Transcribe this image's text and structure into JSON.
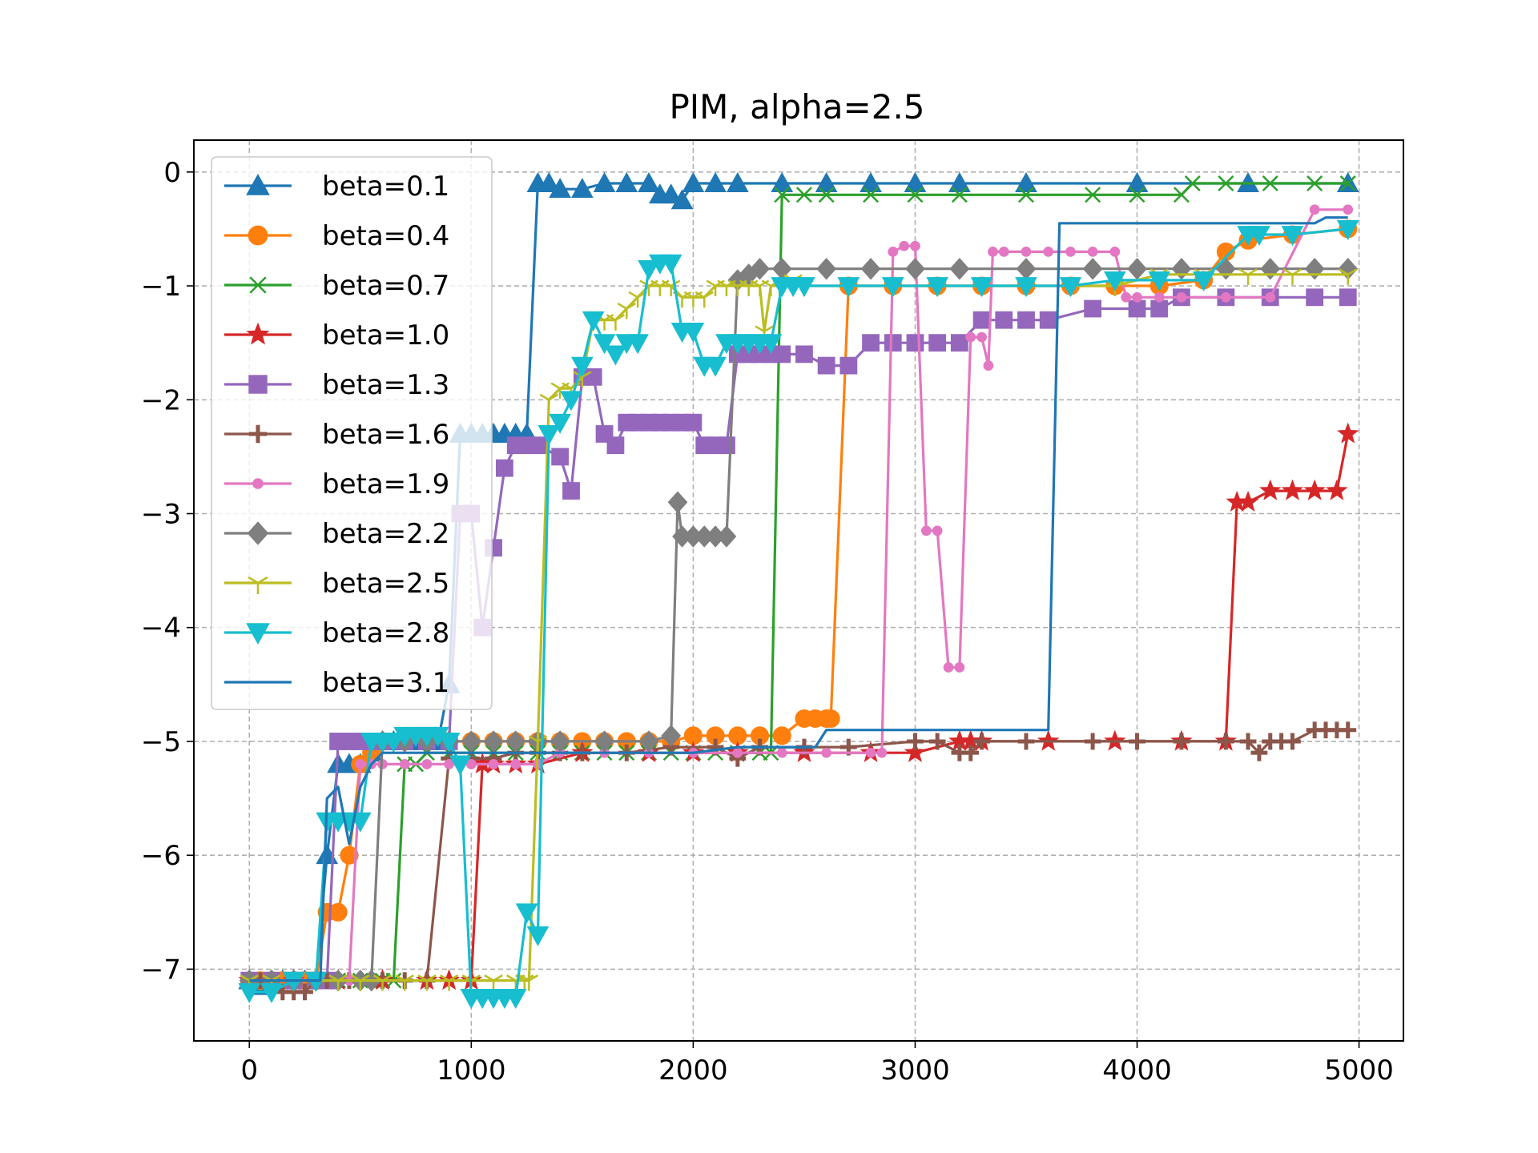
{
  "chart_data": {
    "type": "line",
    "title": "PIM, alpha=2.5",
    "xlabel": "",
    "ylabel": "",
    "xlim": [
      -250,
      5200
    ],
    "ylim": [
      -7.63,
      0.28
    ],
    "xticks": [
      0,
      1000,
      2000,
      3000,
      4000,
      5000
    ],
    "yticks": [
      0,
      -1,
      -2,
      -3,
      -4,
      -5,
      -6,
      -7
    ],
    "xtick_labels": [
      "0",
      "1000",
      "2000",
      "3000",
      "4000",
      "5000"
    ],
    "ytick_labels": [
      "0",
      "−1",
      "−2",
      "−3",
      "−4",
      "−5",
      "−6",
      "−7"
    ],
    "grid": true,
    "legend_position": "upper-left",
    "series": [
      {
        "name": "beta=0.1",
        "color": "#1f77b4",
        "marker": "triangle-up",
        "x": [
          0,
          50,
          100,
          150,
          200,
          250,
          300,
          350,
          400,
          450,
          500,
          550,
          600,
          650,
          700,
          750,
          800,
          850,
          900,
          950,
          1000,
          1050,
          1100,
          1150,
          1200,
          1250,
          1300,
          1350,
          1400,
          1500,
          1600,
          1700,
          1800,
          1850,
          1900,
          1950,
          2000,
          2100,
          2200,
          2400,
          2600,
          2800,
          3000,
          3200,
          3500,
          4000,
          4500,
          4950
        ],
        "y": [
          -7.1,
          -7.15,
          -7.1,
          -7.1,
          -7.1,
          -7.1,
          -7.1,
          -6.0,
          -5.2,
          -5.2,
          -5.2,
          -5.1,
          -5.0,
          -5.0,
          -5.0,
          -5.0,
          -5.0,
          -5.0,
          -4.5,
          -2.3,
          -2.3,
          -2.3,
          -2.3,
          -2.3,
          -2.3,
          -2.3,
          -0.1,
          -0.1,
          -0.15,
          -0.15,
          -0.1,
          -0.1,
          -0.1,
          -0.2,
          -0.2,
          -0.25,
          -0.1,
          -0.1,
          -0.1,
          -0.1,
          -0.1,
          -0.1,
          -0.1,
          -0.1,
          -0.1,
          -0.1,
          -0.1,
          -0.1
        ]
      },
      {
        "name": "beta=0.4",
        "color": "#ff7f0e",
        "marker": "circle",
        "x": [
          0,
          50,
          100,
          150,
          200,
          250,
          300,
          350,
          400,
          450,
          500,
          550,
          600,
          700,
          800,
          900,
          1000,
          1100,
          1200,
          1300,
          1400,
          1500,
          1600,
          1700,
          1800,
          1900,
          2000,
          2100,
          2200,
          2300,
          2400,
          2500,
          2550,
          2600,
          2620,
          2700,
          2900,
          3100,
          3300,
          3500,
          3700,
          3900,
          4100,
          4300,
          4400,
          4500,
          4700,
          4950
        ],
        "y": [
          -7.1,
          -7.1,
          -7.1,
          -7.1,
          -7.1,
          -7.1,
          -7.1,
          -6.5,
          -6.5,
          -6.0,
          -5.2,
          -5.1,
          -5.0,
          -5.0,
          -5.0,
          -5.0,
          -5.0,
          -5.0,
          -5.0,
          -5.0,
          -5.0,
          -5.0,
          -5.0,
          -5.0,
          -5.0,
          -5.0,
          -4.95,
          -4.95,
          -4.95,
          -4.95,
          -4.95,
          -4.8,
          -4.8,
          -4.8,
          -4.8,
          -1.0,
          -1.0,
          -1.0,
          -1.0,
          -1.0,
          -1.0,
          -1.0,
          -1.0,
          -0.95,
          -0.7,
          -0.6,
          -0.55,
          -0.5
        ]
      },
      {
        "name": "beta=0.7",
        "color": "#2ca02c",
        "marker": "x",
        "x": [
          0,
          100,
          200,
          300,
          400,
          500,
          600,
          650,
          700,
          750,
          800,
          900,
          1000,
          1100,
          1200,
          1300,
          1400,
          1500,
          1600,
          1700,
          1800,
          1900,
          2000,
          2100,
          2200,
          2300,
          2350,
          2400,
          2500,
          2600,
          2800,
          3000,
          3200,
          3500,
          3800,
          4000,
          4200,
          4250,
          4400,
          4600,
          4800,
          4950
        ],
        "y": [
          -7.1,
          -7.1,
          -7.1,
          -7.1,
          -7.1,
          -7.1,
          -7.1,
          -7.1,
          -5.2,
          -5.2,
          -5.1,
          -5.1,
          -5.1,
          -5.1,
          -5.1,
          -5.1,
          -5.1,
          -5.1,
          -5.1,
          -5.1,
          -5.1,
          -5.1,
          -5.1,
          -5.1,
          -5.1,
          -5.1,
          -5.1,
          -0.2,
          -0.2,
          -0.2,
          -0.2,
          -0.2,
          -0.2,
          -0.2,
          -0.2,
          -0.2,
          -0.2,
          -0.1,
          -0.1,
          -0.1,
          -0.1,
          -0.1
        ]
      },
      {
        "name": "beta=1.0",
        "color": "#d62728",
        "marker": "star",
        "x": [
          0,
          200,
          400,
          600,
          800,
          900,
          1000,
          1050,
          1100,
          1200,
          1300,
          1500,
          1800,
          2000,
          2200,
          2500,
          2800,
          3000,
          3200,
          3250,
          3300,
          3600,
          3900,
          4200,
          4400,
          4450,
          4500,
          4600,
          4700,
          4800,
          4900,
          4950
        ],
        "y": [
          -7.1,
          -7.1,
          -7.1,
          -7.1,
          -7.1,
          -7.1,
          -7.1,
          -5.2,
          -5.2,
          -5.2,
          -5.2,
          -5.1,
          -5.1,
          -5.1,
          -5.1,
          -5.1,
          -5.1,
          -5.1,
          -5.0,
          -5.0,
          -5.0,
          -5.0,
          -5.0,
          -5.0,
          -5.0,
          -2.9,
          -2.9,
          -2.8,
          -2.8,
          -2.8,
          -2.8,
          -2.3
        ]
      },
      {
        "name": "beta=1.3",
        "color": "#9467bd",
        "marker": "square",
        "x": [
          0,
          100,
          200,
          300,
          350,
          400,
          450,
          500,
          550,
          600,
          700,
          800,
          900,
          950,
          1000,
          1050,
          1100,
          1150,
          1200,
          1250,
          1300,
          1400,
          1450,
          1500,
          1550,
          1600,
          1650,
          1700,
          1750,
          1800,
          1850,
          1900,
          1950,
          2000,
          2050,
          2100,
          2150,
          2200,
          2250,
          2300,
          2350,
          2400,
          2500,
          2600,
          2700,
          2800,
          2900,
          3000,
          3100,
          3200,
          3300,
          3400,
          3500,
          3600,
          3800,
          4000,
          4100,
          4200,
          4400,
          4600,
          4800,
          4950
        ],
        "y": [
          -7.1,
          -7.1,
          -7.1,
          -7.1,
          -7.1,
          -5.0,
          -5.0,
          -5.0,
          -5.0,
          -5.0,
          -5.0,
          -5.0,
          -5.0,
          -3.0,
          -3.0,
          -4.0,
          -3.3,
          -2.6,
          -2.4,
          -2.4,
          -2.4,
          -2.5,
          -2.8,
          -1.8,
          -1.8,
          -2.3,
          -2.4,
          -2.2,
          -2.2,
          -2.2,
          -2.2,
          -2.2,
          -2.2,
          -2.2,
          -2.4,
          -2.4,
          -2.4,
          -1.6,
          -1.6,
          -1.6,
          -1.6,
          -1.6,
          -1.6,
          -1.7,
          -1.7,
          -1.5,
          -1.5,
          -1.5,
          -1.5,
          -1.5,
          -1.3,
          -1.3,
          -1.3,
          -1.3,
          -1.2,
          -1.2,
          -1.2,
          -1.1,
          -1.1,
          -1.1,
          -1.1,
          -1.1
        ]
      },
      {
        "name": "beta=1.6",
        "color": "#8c564b",
        "marker": "plus",
        "x": [
          0,
          50,
          100,
          150,
          200,
          250,
          300,
          350,
          400,
          450,
          500,
          550,
          600,
          700,
          800,
          900,
          1000,
          1100,
          1200,
          1300,
          1400,
          1500,
          1700,
          1900,
          2100,
          2200,
          2300,
          2500,
          2700,
          3000,
          3100,
          3200,
          3250,
          3300,
          3500,
          3800,
          4000,
          4200,
          4400,
          4500,
          4550,
          4600,
          4650,
          4700,
          4800,
          4850,
          4900,
          4950
        ],
        "y": [
          -7.1,
          -7.1,
          -7.1,
          -7.2,
          -7.2,
          -7.2,
          -7.1,
          -7.1,
          -7.1,
          -7.1,
          -7.1,
          -7.1,
          -7.1,
          -7.1,
          -7.1,
          -5.15,
          -5.15,
          -5.15,
          -5.1,
          -5.1,
          -5.1,
          -5.1,
          -5.1,
          -5.05,
          -5.05,
          -5.15,
          -5.05,
          -5.05,
          -5.05,
          -5.0,
          -5.0,
          -5.1,
          -5.1,
          -5.0,
          -5.0,
          -5.0,
          -5.0,
          -5.0,
          -5.0,
          -5.0,
          -5.1,
          -5.0,
          -5.0,
          -5.0,
          -4.9,
          -4.9,
          -4.9,
          -4.9
        ]
      },
      {
        "name": "beta=1.9",
        "color": "#e377c2",
        "marker": "dot",
        "x": [
          0,
          100,
          200,
          300,
          400,
          450,
          500,
          550,
          600,
          700,
          800,
          900,
          1000,
          1100,
          1200,
          1300,
          1400,
          1600,
          1800,
          2000,
          2200,
          2400,
          2600,
          2800,
          2850,
          2900,
          2950,
          3000,
          3050,
          3100,
          3150,
          3200,
          3250,
          3300,
          3330,
          3350,
          3400,
          3500,
          3600,
          3700,
          3800,
          3900,
          3950,
          4000,
          4100,
          4200,
          4400,
          4600,
          4800,
          4950
        ],
        "y": [
          -7.1,
          -7.1,
          -7.1,
          -7.1,
          -7.1,
          -7.1,
          -5.2,
          -5.2,
          -5.2,
          -5.2,
          -5.2,
          -5.2,
          -5.2,
          -5.2,
          -5.2,
          -5.2,
          -5.1,
          -5.1,
          -5.1,
          -5.1,
          -5.1,
          -5.1,
          -5.1,
          -5.1,
          -5.1,
          -0.7,
          -0.65,
          -0.65,
          -3.15,
          -3.15,
          -4.35,
          -4.35,
          -1.45,
          -1.45,
          -1.7,
          -0.7,
          -0.7,
          -0.7,
          -0.7,
          -0.7,
          -0.7,
          -0.7,
          -1.1,
          -1.1,
          -1.1,
          -1.1,
          -1.1,
          -1.1,
          -0.33,
          -0.33
        ]
      },
      {
        "name": "beta=2.2",
        "color": "#7f7f7f",
        "marker": "diamond",
        "x": [
          0,
          100,
          200,
          300,
          400,
          500,
          550,
          600,
          700,
          800,
          900,
          1000,
          1100,
          1200,
          1300,
          1400,
          1600,
          1800,
          1900,
          1930,
          1950,
          2000,
          2050,
          2100,
          2150,
          2200,
          2250,
          2300,
          2400,
          2600,
          2800,
          3000,
          3200,
          3500,
          3800,
          4000,
          4200,
          4400,
          4600,
          4800,
          4950
        ],
        "y": [
          -7.1,
          -7.1,
          -7.1,
          -7.1,
          -7.1,
          -7.1,
          -7.1,
          -5.0,
          -5.0,
          -5.0,
          -5.0,
          -5.0,
          -5.0,
          -5.0,
          -5.0,
          -5.0,
          -5.0,
          -5.0,
          -4.95,
          -2.9,
          -3.2,
          -3.2,
          -3.2,
          -3.2,
          -3.2,
          -0.95,
          -0.9,
          -0.85,
          -0.85,
          -0.85,
          -0.85,
          -0.85,
          -0.85,
          -0.85,
          -0.85,
          -0.85,
          -0.85,
          -0.85,
          -0.85,
          -0.85,
          -0.85
        ]
      },
      {
        "name": "beta=2.5",
        "color": "#bcbd22",
        "marker": "tri-down",
        "x": [
          0,
          100,
          200,
          300,
          400,
          500,
          600,
          700,
          800,
          900,
          1000,
          1100,
          1200,
          1240,
          1260,
          1300,
          1350,
          1400,
          1450,
          1500,
          1550,
          1600,
          1650,
          1700,
          1750,
          1800,
          1850,
          1900,
          1950,
          2000,
          2050,
          2100,
          2150,
          2200,
          2250,
          2300,
          2320,
          2350,
          2400,
          2450,
          2500,
          2700,
          2900,
          3100,
          3300,
          3500,
          3700,
          3900,
          4100,
          4300,
          4500,
          4700,
          4950
        ],
        "y": [
          -7.1,
          -7.1,
          -7.1,
          -7.1,
          -7.1,
          -7.1,
          -7.1,
          -7.1,
          -7.1,
          -7.1,
          -7.1,
          -7.1,
          -7.1,
          -7.1,
          -7.1,
          -5.0,
          -2.0,
          -1.9,
          -1.9,
          -1.8,
          -1.3,
          -1.3,
          -1.3,
          -1.2,
          -1.1,
          -1.0,
          -1.0,
          -1.0,
          -1.1,
          -1.1,
          -1.1,
          -1.0,
          -1.0,
          -1.0,
          -1.0,
          -1.0,
          -1.4,
          -1.0,
          -1.0,
          -0.95,
          -1.0,
          -1.0,
          -1.0,
          -1.0,
          -1.0,
          -1.0,
          -1.0,
          -1.0,
          -0.9,
          -0.9,
          -0.9,
          -0.9,
          -0.9
        ]
      },
      {
        "name": "beta=2.8",
        "color": "#17becf",
        "marker": "triangle-down",
        "x": [
          0,
          100,
          200,
          300,
          350,
          400,
          450,
          500,
          550,
          600,
          650,
          700,
          750,
          800,
          850,
          900,
          950,
          1000,
          1050,
          1100,
          1150,
          1200,
          1250,
          1300,
          1350,
          1400,
          1450,
          1500,
          1550,
          1600,
          1650,
          1700,
          1750,
          1800,
          1850,
          1900,
          1950,
          2000,
          2050,
          2100,
          2150,
          2200,
          2250,
          2300,
          2350,
          2400,
          2450,
          2500,
          2700,
          2900,
          3100,
          3300,
          3500,
          3700,
          3900,
          4100,
          4300,
          4500,
          4550,
          4700,
          4950
        ],
        "y": [
          -7.2,
          -7.2,
          -7.1,
          -7.1,
          -5.7,
          -5.7,
          -5.7,
          -5.7,
          -5.0,
          -5.0,
          -5.0,
          -4.95,
          -4.95,
          -4.95,
          -4.95,
          -5.0,
          -5.2,
          -7.25,
          -7.25,
          -7.25,
          -7.25,
          -7.25,
          -6.5,
          -6.7,
          -2.3,
          -2.2,
          -2.0,
          -1.7,
          -1.3,
          -1.5,
          -1.6,
          -1.5,
          -1.5,
          -0.85,
          -0.8,
          -0.8,
          -1.4,
          -1.4,
          -1.7,
          -1.7,
          -1.5,
          -1.5,
          -1.5,
          -1.5,
          -1.5,
          -1.0,
          -1.0,
          -1.0,
          -1.0,
          -1.0,
          -1.0,
          -1.0,
          -1.0,
          -1.0,
          -0.95,
          -0.95,
          -0.95,
          -0.55,
          -0.55,
          -0.55,
          -0.5
        ]
      },
      {
        "name": "beta=3.1",
        "color": "#1f77b4",
        "marker": "none",
        "x": [
          0,
          100,
          200,
          300,
          320,
          350,
          400,
          450,
          500,
          550,
          600,
          700,
          800,
          900,
          1000,
          1100,
          1200,
          1300,
          1400,
          1500,
          1600,
          1800,
          2000,
          2200,
          2400,
          2550,
          2600,
          2800,
          3000,
          3200,
          3400,
          3600,
          3650,
          3800,
          4000,
          4200,
          4400,
          4600,
          4800,
          4850,
          4950
        ],
        "y": [
          -7.1,
          -7.1,
          -7.1,
          -7.1,
          -7.1,
          -5.5,
          -5.4,
          -5.9,
          -5.4,
          -5.2,
          -5.1,
          -5.1,
          -5.1,
          -5.1,
          -5.1,
          -5.1,
          -5.1,
          -5.1,
          -5.1,
          -5.1,
          -5.1,
          -5.1,
          -5.1,
          -5.05,
          -5.05,
          -5.05,
          -4.9,
          -4.9,
          -4.9,
          -4.9,
          -4.9,
          -4.9,
          -0.45,
          -0.45,
          -0.45,
          -0.45,
          -0.45,
          -0.45,
          -0.45,
          -0.4,
          -0.4
        ]
      }
    ]
  }
}
